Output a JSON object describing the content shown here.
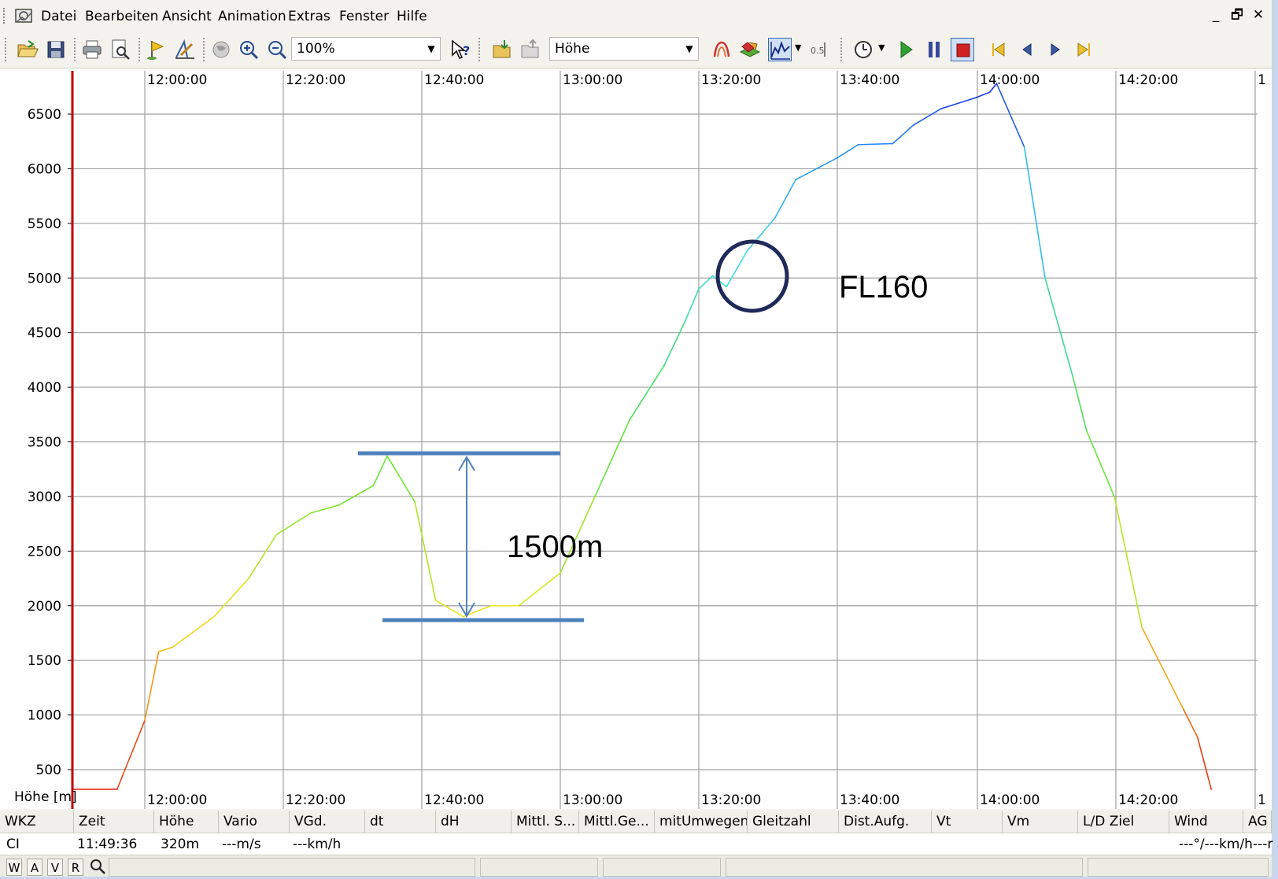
{
  "menu": {
    "items": [
      "Datei",
      "Bearbeiten",
      "Ansicht",
      "Animation",
      "Extras",
      "Fenster",
      "Hilfe"
    ]
  },
  "window_controls": {
    "minimize": "_",
    "restore": "🗗",
    "close": "✕"
  },
  "toolbar": {
    "zoom_value": "100%",
    "channel_value": "Höhe"
  },
  "chart_data": {
    "type": "line",
    "ylabel": "Höhe [m]",
    "x_ticks": [
      "12:00:00",
      "12:20:00",
      "12:40:00",
      "13:00:00",
      "13:20:00",
      "13:40:00",
      "14:00:00",
      "14:20:00",
      "1"
    ],
    "y_ticks": [
      500,
      1000,
      1500,
      2000,
      2500,
      3000,
      3500,
      4000,
      4500,
      5000,
      5500,
      6000,
      6500
    ],
    "ylim": [
      0,
      6800
    ],
    "grid": true,
    "x_unit": "minutes since 11:49:36",
    "series": [
      {
        "values_time": [
          "11:49:36",
          "11:56:00",
          "12:00:00",
          "12:02:00",
          "12:04:00",
          "12:10:00",
          "12:15:00",
          "12:19:00",
          "12:24:00",
          "12:28:00",
          "12:33:00",
          "12:35:00",
          "12:39:00",
          "12:42:00",
          "12:46:00",
          "12:50:00",
          "12:54:00",
          "13:00:00",
          "13:05:00",
          "13:10:00",
          "13:15:00",
          "13:18:00",
          "13:20:00",
          "13:22:00",
          "13:24:00",
          "13:27:00",
          "13:31:00",
          "13:34:00",
          "13:40:00",
          "13:43:00",
          "13:48:00",
          "13:51:00",
          "13:55:00",
          "14:00:00",
          "14:02:00",
          "14:03:00",
          "14:07:00",
          "14:10:00",
          "14:14:00",
          "14:16:00",
          "14:20:00",
          "14:24:00",
          "14:30:00",
          "14:32:00",
          "14:34:00"
        ],
        "values": [
          320,
          320,
          950,
          1580,
          1620,
          1900,
          2250,
          2650,
          2850,
          2920,
          3100,
          3370,
          2950,
          2050,
          1900,
          2000,
          2000,
          2300,
          3000,
          3700,
          4200,
          4600,
          4900,
          5020,
          4920,
          5250,
          5550,
          5900,
          6100,
          6220,
          6230,
          6400,
          6550,
          6650,
          6700,
          6780,
          6200,
          5000,
          4100,
          3600,
          3000,
          1800,
          1050,
          800,
          320
        ]
      }
    ],
    "annotations": [
      "FL160",
      "1500m"
    ]
  },
  "table": {
    "headers": [
      "WKZ",
      "Zeit",
      "Höhe",
      "Vario",
      "VGd.",
      "dt",
      "dH",
      "Mittl. S...",
      "Mittl.Ge...",
      "mitUmwegen",
      "Gleitzahl",
      "Dist.Aufg.",
      "Vt",
      "Vm",
      "L/D Ziel",
      "Wind",
      "AG"
    ],
    "row": [
      "CI",
      "11:49:36",
      "320m",
      "---m/s",
      "---km/h",
      "---°/---km/h---r"
    ]
  },
  "statusbar": {
    "tabs": [
      "W",
      "A",
      "V",
      "R"
    ]
  },
  "colors": {
    "grid": "#a0a0a0",
    "start_marker": "#c00000",
    "annotation_blue": "#4f81bd",
    "circle": "#1f2a5a"
  }
}
